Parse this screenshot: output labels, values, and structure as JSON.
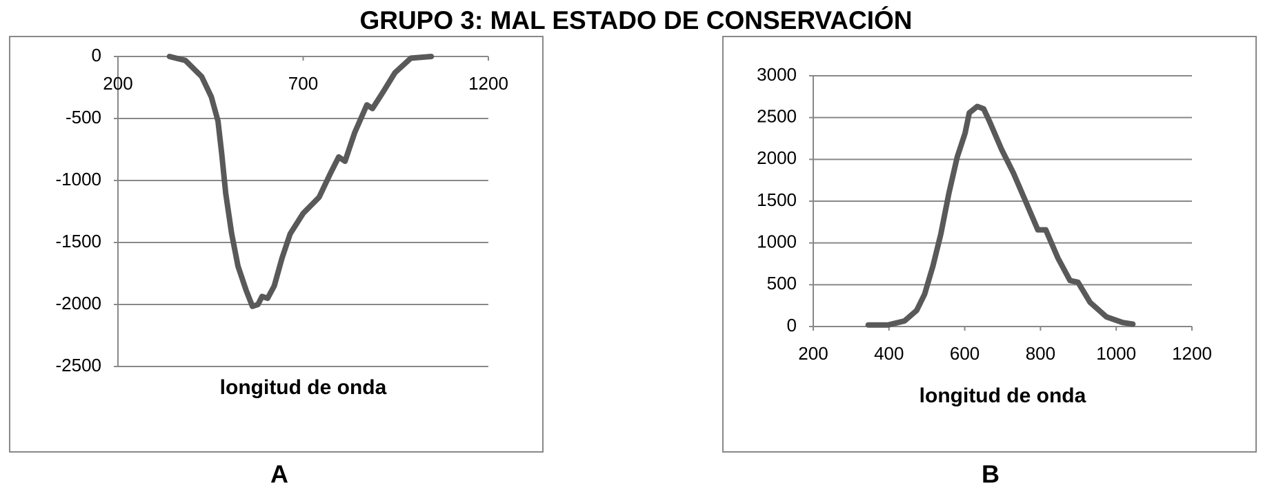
{
  "title": "GRUPO 3: MAL ESTADO DE CONSERVACIÓN",
  "chart_data": [
    {
      "type": "line",
      "label": "A",
      "x_label": "longitud de onda",
      "grid": true,
      "xlim": [
        200,
        1200
      ],
      "xticks": [
        200,
        700,
        1200
      ],
      "ylim": [
        -2500,
        0
      ],
      "yticks": [
        0,
        -500,
        -1000,
        -1500,
        -2000,
        -2500
      ],
      "series": [
        {
          "color": "#595959",
          "x": [
            339,
            382,
            426,
            452,
            470,
            480,
            491,
            507,
            524,
            546,
            563,
            578,
            589,
            604,
            622,
            643,
            665,
            700,
            743,
            774,
            796,
            813,
            839,
            872,
            887,
            915,
            948,
            991,
            1046
          ],
          "values": [
            0,
            -32,
            -162,
            -325,
            -520,
            -780,
            -1105,
            -1430,
            -1690,
            -1885,
            -2015,
            -2000,
            -1935,
            -1950,
            -1850,
            -1625,
            -1430,
            -1265,
            -1135,
            -940,
            -810,
            -845,
            -615,
            -390,
            -420,
            -290,
            -130,
            -13,
            0
          ]
        }
      ]
    },
    {
      "type": "line",
      "label": "B",
      "x_label": "longitud de onda",
      "grid": true,
      "xlim": [
        200,
        1200
      ],
      "xticks": [
        200,
        400,
        600,
        800,
        1000,
        1200
      ],
      "ylim": [
        0,
        3000
      ],
      "yticks": [
        0,
        500,
        1000,
        1500,
        2000,
        2500,
        3000
      ],
      "series": [
        {
          "color": "#595959",
          "x": [
            345,
            398,
            441,
            473,
            494,
            516,
            537,
            558,
            580,
            601,
            612,
            633,
            650,
            665,
            697,
            729,
            761,
            793,
            814,
            846,
            878,
            899,
            931,
            974,
            1017,
            1044
          ],
          "values": [
            19,
            19,
            67,
            193,
            386,
            723,
            1109,
            1591,
            2025,
            2315,
            2556,
            2633,
            2604,
            2459,
            2122,
            1832,
            1495,
            1157,
            1157,
            820,
            550,
            530,
            289,
            116,
            48,
            29
          ]
        }
      ]
    }
  ]
}
